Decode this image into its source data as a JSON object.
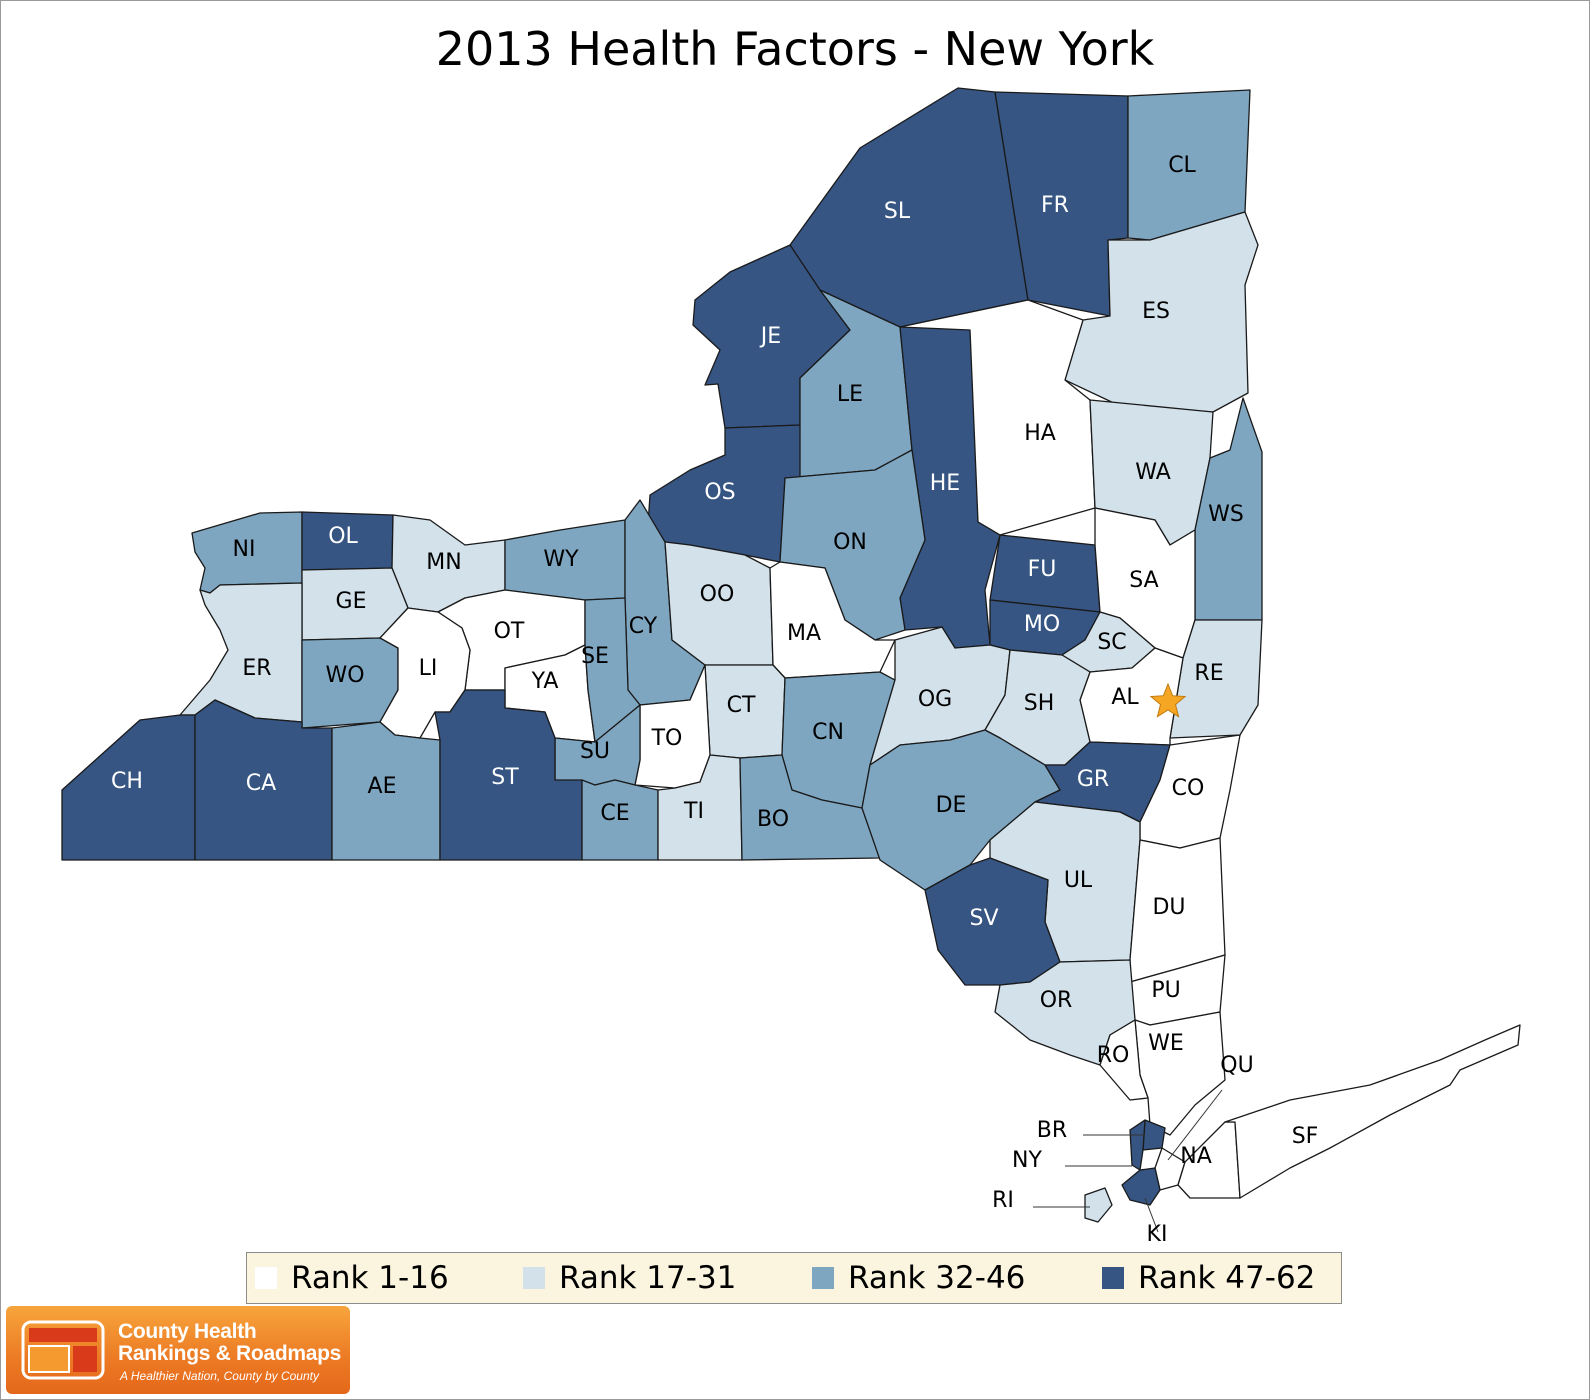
{
  "title": "2013 Health Factors - New York",
  "colors": {
    "rank_1_16": "#ffffff",
    "rank_17_31": "#d2e1ea",
    "rank_32_46": "#7fa6c1",
    "rank_47_62": "#365583",
    "star": "#f5a623",
    "legend_bg": "#fbf5df"
  },
  "legend": [
    {
      "label": "Rank 1-16",
      "class": "rank_1_16"
    },
    {
      "label": "Rank 17-31",
      "class": "rank_17_31"
    },
    {
      "label": "Rank 32-46",
      "class": "rank_32_46"
    },
    {
      "label": "Rank 47-62",
      "class": "rank_47_62"
    }
  ],
  "counties": [
    {
      "abbr": "SL",
      "class": "rank_47_62"
    },
    {
      "abbr": "FR",
      "class": "rank_47_62"
    },
    {
      "abbr": "CL",
      "class": "rank_32_46"
    },
    {
      "abbr": "JE",
      "class": "rank_47_62"
    },
    {
      "abbr": "LE",
      "class": "rank_32_46"
    },
    {
      "abbr": "ES",
      "class": "rank_17_31"
    },
    {
      "abbr": "HA",
      "class": "rank_1_16"
    },
    {
      "abbr": "HE",
      "class": "rank_47_62"
    },
    {
      "abbr": "WA",
      "class": "rank_17_31"
    },
    {
      "abbr": "WS",
      "class": "rank_32_46"
    },
    {
      "abbr": "OS",
      "class": "rank_47_62"
    },
    {
      "abbr": "ON",
      "class": "rank_32_46"
    },
    {
      "abbr": "FU",
      "class": "rank_47_62"
    },
    {
      "abbr": "SA",
      "class": "rank_1_16"
    },
    {
      "abbr": "MO",
      "class": "rank_47_62"
    },
    {
      "abbr": "SC",
      "class": "rank_17_31"
    },
    {
      "abbr": "RE",
      "class": "rank_17_31"
    },
    {
      "abbr": "AL",
      "class": "rank_1_16"
    },
    {
      "abbr": "NI",
      "class": "rank_32_46"
    },
    {
      "abbr": "OL",
      "class": "rank_47_62"
    },
    {
      "abbr": "MN",
      "class": "rank_17_31"
    },
    {
      "abbr": "WY",
      "class": "rank_32_46"
    },
    {
      "abbr": "GE",
      "class": "rank_17_31"
    },
    {
      "abbr": "OT",
      "class": "rank_1_16"
    },
    {
      "abbr": "CY",
      "class": "rank_32_46"
    },
    {
      "abbr": "OO",
      "class": "rank_17_31"
    },
    {
      "abbr": "MA",
      "class": "rank_1_16"
    },
    {
      "abbr": "ER",
      "class": "rank_17_31"
    },
    {
      "abbr": "WO",
      "class": "rank_32_46"
    },
    {
      "abbr": "LI",
      "class": "rank_1_16"
    },
    {
      "abbr": "YA",
      "class": "rank_1_16"
    },
    {
      "abbr": "SE",
      "class": "rank_32_46"
    },
    {
      "abbr": "CT",
      "class": "rank_17_31"
    },
    {
      "abbr": "CN",
      "class": "rank_32_46"
    },
    {
      "abbr": "OG",
      "class": "rank_17_31"
    },
    {
      "abbr": "SH",
      "class": "rank_17_31"
    },
    {
      "abbr": "TO",
      "class": "rank_1_16"
    },
    {
      "abbr": "SU",
      "class": "rank_32_46"
    },
    {
      "abbr": "CH",
      "class": "rank_47_62"
    },
    {
      "abbr": "CA",
      "class": "rank_47_62"
    },
    {
      "abbr": "AE",
      "class": "rank_32_46"
    },
    {
      "abbr": "ST",
      "class": "rank_47_62"
    },
    {
      "abbr": "CE",
      "class": "rank_32_46"
    },
    {
      "abbr": "TI",
      "class": "rank_17_31"
    },
    {
      "abbr": "BO",
      "class": "rank_32_46"
    },
    {
      "abbr": "DE",
      "class": "rank_32_46"
    },
    {
      "abbr": "GR",
      "class": "rank_47_62"
    },
    {
      "abbr": "CO",
      "class": "rank_1_16"
    },
    {
      "abbr": "UL",
      "class": "rank_17_31"
    },
    {
      "abbr": "SV",
      "class": "rank_47_62"
    },
    {
      "abbr": "DU",
      "class": "rank_1_16"
    },
    {
      "abbr": "PU",
      "class": "rank_1_16"
    },
    {
      "abbr": "OR",
      "class": "rank_17_31"
    },
    {
      "abbr": "WE",
      "class": "rank_1_16"
    },
    {
      "abbr": "RO",
      "class": "rank_1_16"
    },
    {
      "abbr": "QU",
      "class": "rank_1_16"
    },
    {
      "abbr": "BR",
      "class": "rank_47_62"
    },
    {
      "abbr": "NY",
      "class": "rank_47_62"
    },
    {
      "abbr": "KI",
      "class": "rank_47_62"
    },
    {
      "abbr": "RI",
      "class": "rank_17_31"
    },
    {
      "abbr": "NA",
      "class": "rank_1_16"
    },
    {
      "abbr": "SF",
      "class": "rank_1_16"
    }
  ],
  "capital_marker": {
    "county": "AL",
    "icon": "star-icon"
  },
  "logo": {
    "line1": "County Health",
    "line2": "Rankings & Roadmaps",
    "tagline": "A Healthier Nation, County by County"
  }
}
